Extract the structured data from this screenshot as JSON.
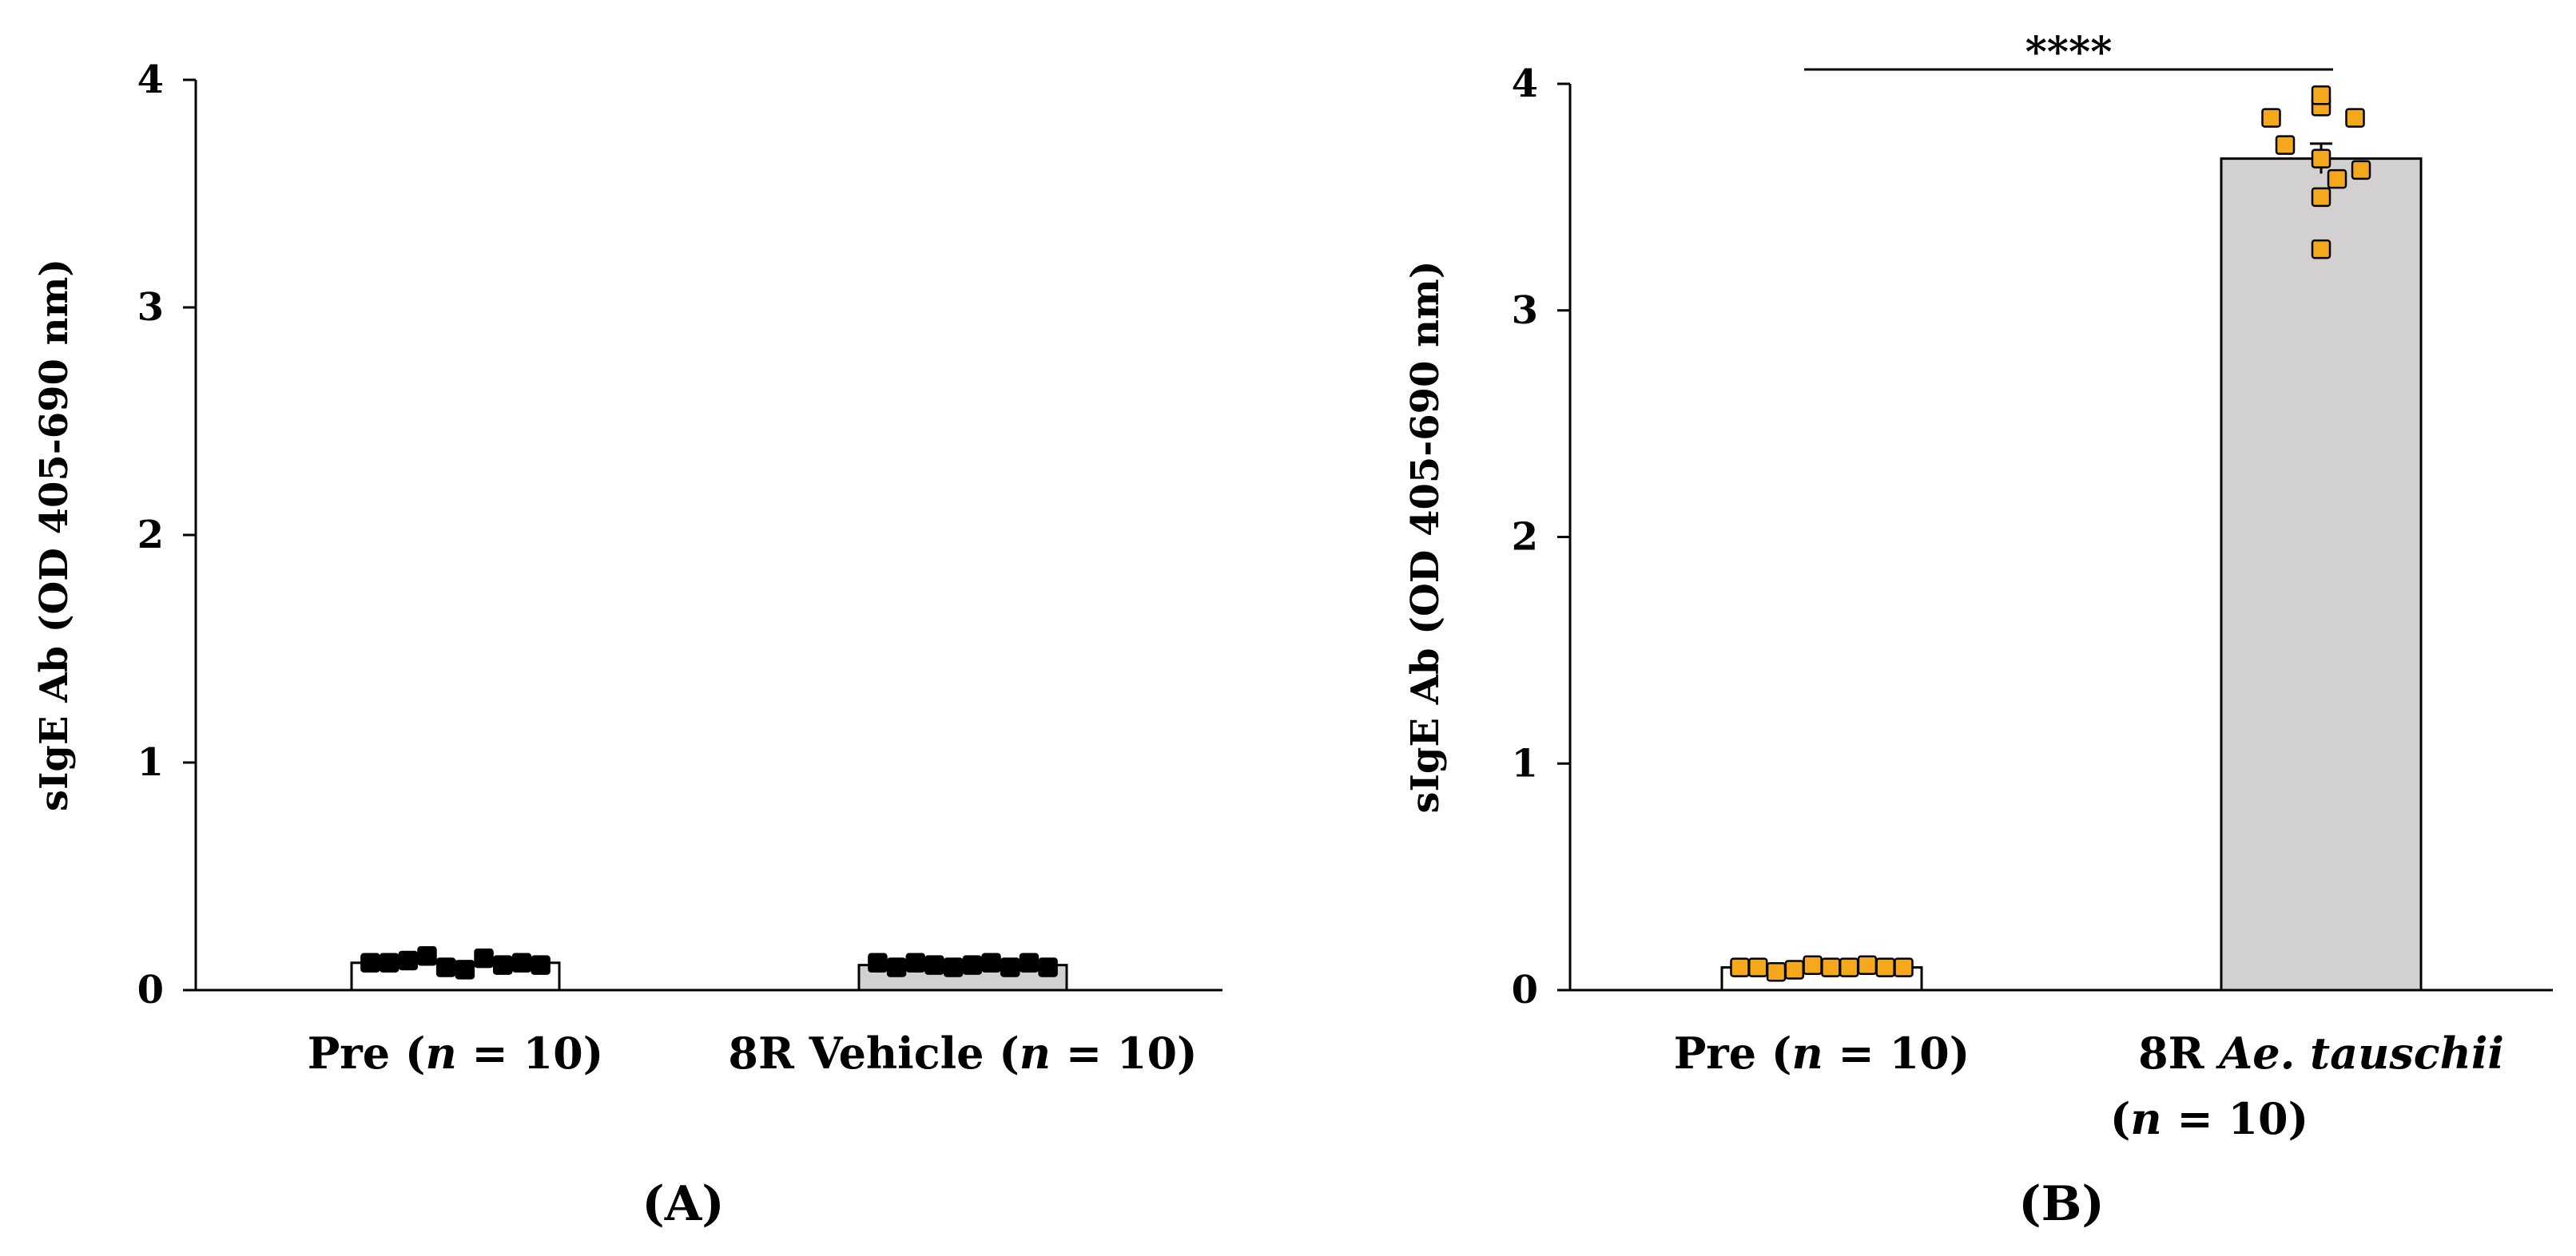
{
  "chart_data": [
    {
      "panel_label": "(A)",
      "type": "bar",
      "ylabel": "sIgE Ab (OD 405-690 nm)",
      "ylim": [
        0,
        4
      ],
      "yticks": [
        "0",
        "1",
        "2",
        "3",
        "4"
      ],
      "categories": [
        {
          "prefix": "Pre (",
          "italic": "n",
          "suffix": " = 10)"
        },
        {
          "prefix": "8R Vehicle (",
          "italic": "n",
          "suffix": " = 10)"
        }
      ],
      "bar_colors": [
        "#ffffff",
        "#d3d0d1"
      ],
      "marker_color": "#000000",
      "marker_edge": "#000000",
      "values": [
        0.12,
        0.11
      ],
      "points": [
        [
          0.12,
          0.12,
          0.13,
          0.15,
          0.1,
          0.09,
          0.14,
          0.11,
          0.12,
          0.11
        ],
        [
          0.12,
          0.1,
          0.12,
          0.11,
          0.1,
          0.11,
          0.12,
          0.1,
          0.12,
          0.1
        ]
      ],
      "significance": ""
    },
    {
      "panel_label": "(B)",
      "type": "bar",
      "ylabel": "sIgE Ab (OD 405-690 nm)",
      "ylim": [
        0,
        4
      ],
      "yticks": [
        "0",
        "1",
        "2",
        "3",
        "4"
      ],
      "categories": [
        {
          "prefix": "Pre (",
          "italic": "n",
          "suffix": " = 10)"
        },
        {
          "prefix": "8R ",
          "italic": "Ae. tauschii",
          "suffix": "",
          "line2_prefix": "(",
          "line2_italic": "n",
          "line2_suffix": " = 10)"
        }
      ],
      "bar_colors": [
        "#ffffff",
        "#d3d0d1"
      ],
      "marker_color": "#f5a81c",
      "marker_edge": "#000000",
      "values": [
        0.1,
        3.67
      ],
      "points": [
        [
          0.1,
          0.1,
          0.08,
          0.09,
          0.11,
          0.1,
          0.1,
          0.11,
          0.1,
          0.1
        ],
        [
          3.85,
          3.9,
          3.95,
          3.73,
          3.67,
          3.58,
          3.85,
          3.5,
          3.27,
          3.62
        ]
      ],
      "significance": "****"
    }
  ]
}
